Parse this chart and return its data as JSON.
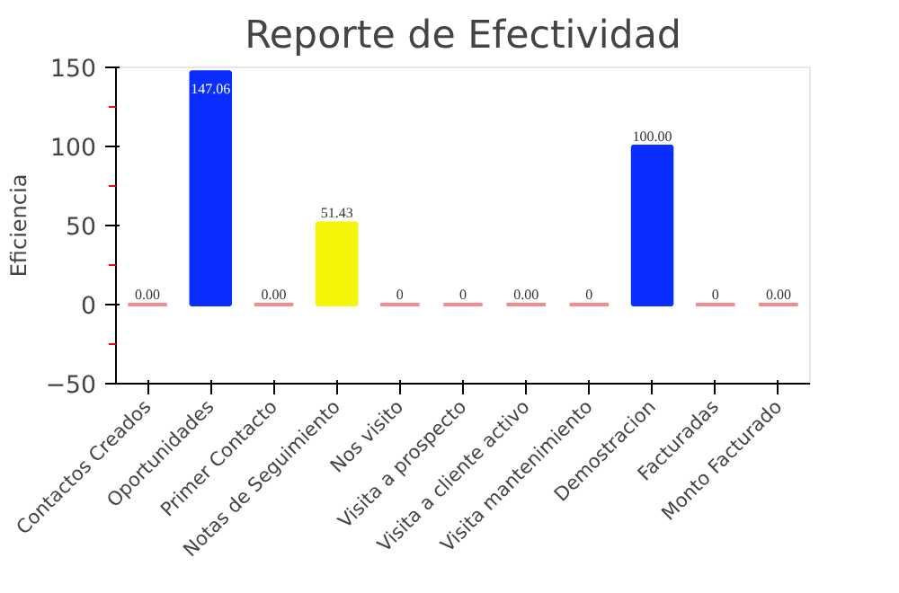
{
  "chart_data": {
    "type": "bar",
    "title": "Reporte de Efectividad",
    "ylabel": "Eficiencia",
    "categories": [
      "Contactos Creados",
      "Oportunidades",
      "Primer Contacto",
      "Notas de Seguimiento",
      "Nos visito",
      "Visita a prospecto",
      "Visita a cliente activo",
      "Visita mantenimiento",
      "Demostracion",
      "Facturadas",
      "Monto Facturado"
    ],
    "values": [
      0,
      147.06,
      0,
      51.43,
      0,
      0,
      0,
      0,
      100,
      0,
      0
    ],
    "colors": [
      "#f88a8a",
      "#0a2eff",
      "#f88a8a",
      "#f5f50a",
      "#f88a8a",
      "#f88a8a",
      "#f88a8a",
      "#f88a8a",
      "#0a2eff",
      "#f88a8a",
      "#f88a8a"
    ],
    "value_labels": [
      "0.00",
      "147.06",
      "0.00",
      "51.43",
      "0",
      "0",
      "0.00",
      "0",
      "100.00",
      "0",
      "0.00"
    ],
    "ylim": [
      -50,
      150
    ],
    "yticks": [
      -50,
      0,
      50,
      100,
      150
    ],
    "grid": false
  }
}
